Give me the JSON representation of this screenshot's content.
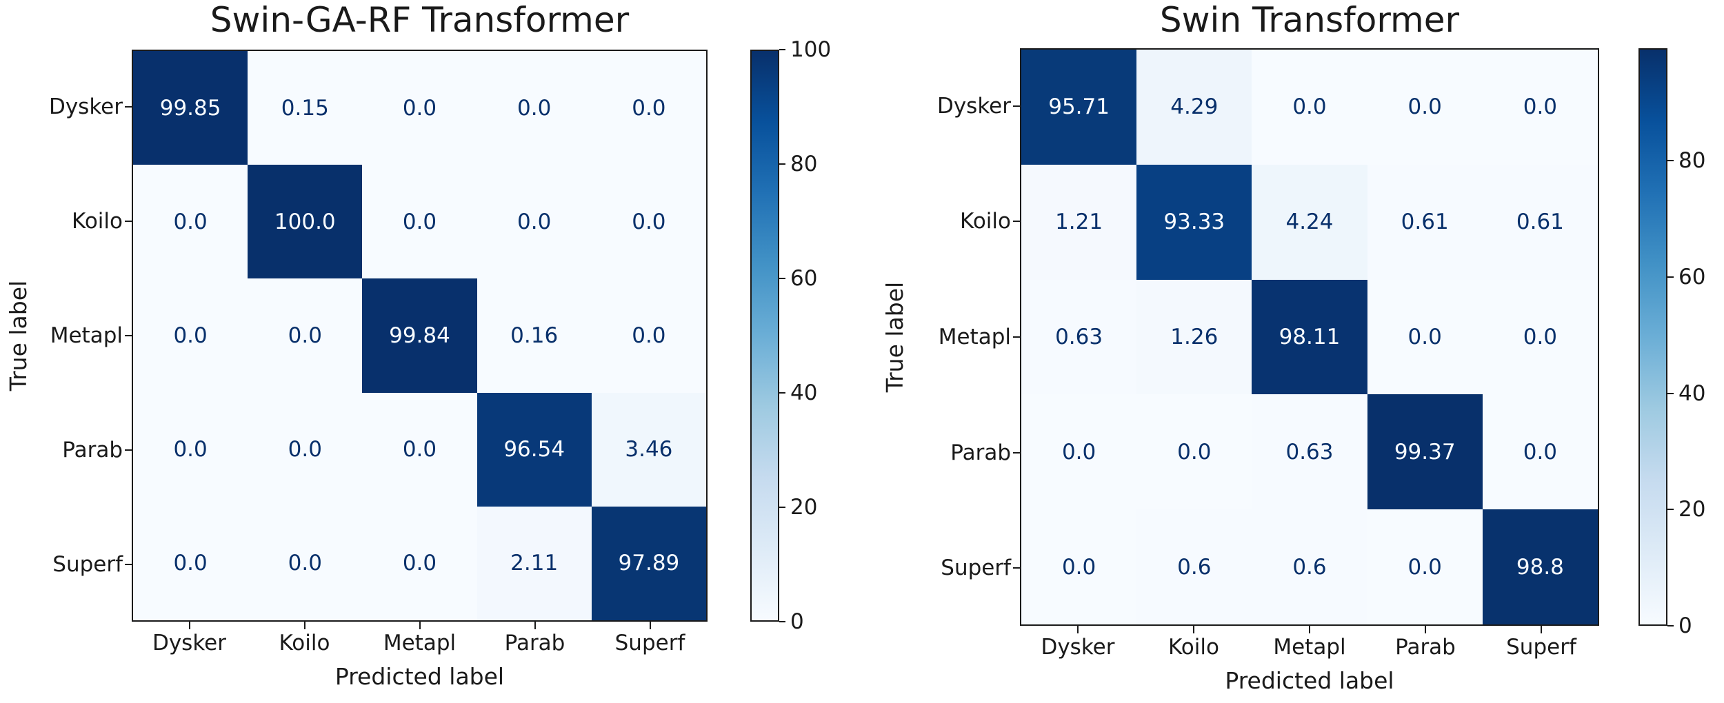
{
  "chart_data": [
    {
      "type": "heatmap",
      "title": "Swin-GA-RF Transformer",
      "xlabel": "Predicted label",
      "ylabel": "True label",
      "categories": [
        "Dysker",
        "Koilo",
        "Metapl",
        "Parab",
        "Superf"
      ],
      "rows": [
        [
          "99.85",
          "0.15",
          "0.0",
          "0.0",
          "0.0"
        ],
        [
          "0.0",
          "100.0",
          "0.0",
          "0.0",
          "0.0"
        ],
        [
          "0.0",
          "0.0",
          "99.84",
          "0.16",
          "0.0"
        ],
        [
          "0.0",
          "0.0",
          "0.0",
          "96.54",
          "3.46"
        ],
        [
          "0.0",
          "0.0",
          "0.0",
          "2.11",
          "97.89"
        ]
      ],
      "colorbar": {
        "ticks": [
          100,
          80,
          60,
          40,
          20,
          0
        ],
        "vmin": 0,
        "vmax": 100
      }
    },
    {
      "type": "heatmap",
      "title": "Swin Transformer",
      "xlabel": "Predicted label",
      "ylabel": "True label",
      "categories": [
        "Dysker",
        "Koilo",
        "Metapl",
        "Parab",
        "Superf"
      ],
      "rows": [
        [
          "95.71",
          "4.29",
          "0.0",
          "0.0",
          "0.0"
        ],
        [
          "1.21",
          "93.33",
          "4.24",
          "0.61",
          "0.61"
        ],
        [
          "0.63",
          "1.26",
          "98.11",
          "0.0",
          "0.0"
        ],
        [
          "0.0",
          "0.0",
          "0.63",
          "99.37",
          "0.0"
        ],
        [
          "0.0",
          "0.6",
          "0.6",
          "0.0",
          "98.8"
        ]
      ],
      "colorbar": {
        "ticks": [
          80,
          60,
          40,
          20,
          0
        ],
        "vmin": 0,
        "vmax": 99.37
      }
    }
  ],
  "colors": {
    "colormap_name": "Blues",
    "colormap_anchors": [
      "#f7fbff",
      "#deebf7",
      "#c6dbef",
      "#9ecae1",
      "#6baed6",
      "#4292c6",
      "#2171b5",
      "#08519c",
      "#08306b"
    ],
    "annotation_dark_text": "#08306b",
    "annotation_light_text": "#f7fbff",
    "axis_text": "#1a1a1a"
  }
}
